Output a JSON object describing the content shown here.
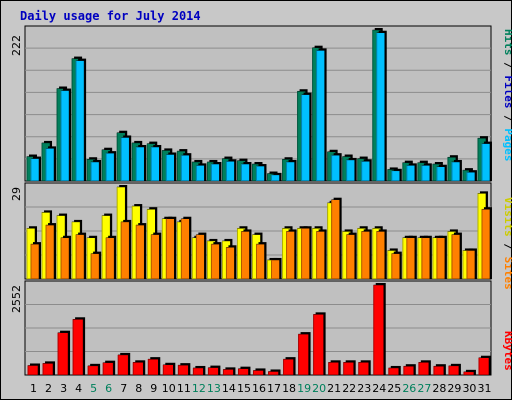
{
  "chart_data": [
    {
      "type": "bar",
      "title": "Daily usage for July 2014",
      "ymax_label": "222",
      "categories": [
        "1",
        "2",
        "3",
        "4",
        "5",
        "6",
        "7",
        "8",
        "9",
        "10",
        "11",
        "12",
        "13",
        "14",
        "15",
        "16",
        "17",
        "18",
        "19",
        "20",
        "21",
        "22",
        "23",
        "24",
        "25",
        "26",
        "27",
        "28",
        "29",
        "30",
        "31"
      ],
      "weekend_days": [
        "5",
        "6",
        "12",
        "13",
        "19",
        "20",
        "26",
        "27"
      ],
      "legend": [
        "Pages",
        "/",
        "Files",
        "/",
        "Hits"
      ],
      "series": [
        {
          "name": "Hits",
          "color": "#00805c",
          "values": [
            36,
            56,
            136,
            180,
            32,
            46,
            71,
            56,
            55,
            45,
            44,
            28,
            28,
            33,
            30,
            25,
            11,
            32,
            132,
            196,
            43,
            36,
            33,
            222,
            17,
            27,
            27,
            25,
            35,
            16,
            63
          ]
        },
        {
          "name": "Files",
          "color": "#00c0ff",
          "values": [
            33,
            48,
            133,
            177,
            28,
            41,
            64,
            50,
            50,
            39,
            38,
            23,
            25,
            29,
            25,
            22,
            9,
            28,
            127,
            192,
            38,
            31,
            29,
            218,
            15,
            23,
            23,
            21,
            28,
            13,
            55
          ]
        },
        {
          "name": "Pages",
          "color": "#00c0ff",
          "values": [
            33,
            48,
            133,
            177,
            28,
            41,
            64,
            50,
            50,
            39,
            38,
            23,
            25,
            29,
            25,
            22,
            9,
            28,
            127,
            192,
            38,
            31,
            29,
            218,
            15,
            23,
            23,
            21,
            28,
            13,
            55
          ]
        }
      ]
    },
    {
      "type": "bar",
      "ymax_label": "29",
      "series_labels": [
        "Sites",
        "/",
        "Visits"
      ],
      "series": [
        {
          "name": "Visits",
          "color": "#ffff00",
          "values": [
            16,
            21,
            20,
            18,
            13,
            20,
            29,
            23,
            22,
            19,
            18,
            13,
            12,
            12,
            16,
            14,
            6,
            16,
            16,
            16,
            24,
            15,
            16,
            16,
            9,
            13,
            13,
            13,
            15,
            9,
            27
          ]
        },
        {
          "name": "Sites",
          "color": "#ff8000",
          "values": [
            11,
            17,
            13,
            14,
            8,
            13,
            18,
            17,
            14,
            19,
            19,
            14,
            11,
            10,
            15,
            11,
            6,
            15,
            16,
            15,
            25,
            14,
            15,
            15,
            8,
            13,
            13,
            13,
            14,
            9,
            22
          ]
        }
      ]
    },
    {
      "type": "bar",
      "ymax_label": "2552",
      "series_labels": [
        "KBytes"
      ],
      "series": [
        {
          "name": "KBytes",
          "color": "#ff0000",
          "values": [
            270,
            330,
            1200,
            1580,
            260,
            350,
            570,
            360,
            450,
            290,
            280,
            200,
            210,
            160,
            180,
            130,
            100,
            450,
            1160,
            1720,
            360,
            360,
            360,
            2552,
            200,
            250,
            360,
            250,
            260,
            90,
            490
          ]
        }
      ]
    }
  ]
}
